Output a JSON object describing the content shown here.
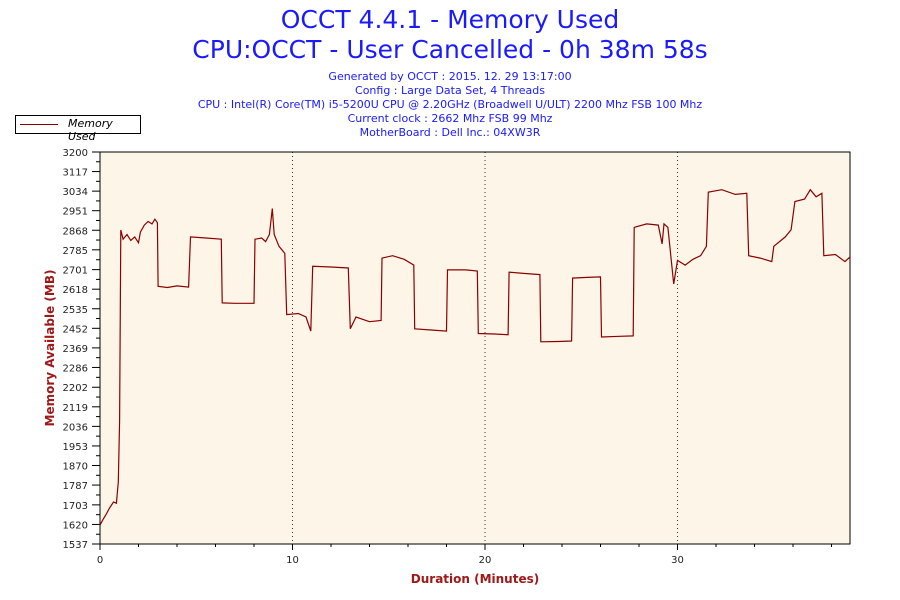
{
  "header": {
    "title": "OCCT 4.4.1 - Memory Used",
    "subtitle": "CPU:OCCT - User Cancelled - 0h 38m 58s",
    "info": [
      "Generated by OCCT : 2015. 12. 29 13:17:00",
      "Config : Large Data Set, 4 Threads",
      "CPU : Intel(R) Core(TM) i5-5200U CPU @ 2.20GHz (Broadwell U/ULT) 2200 Mhz FSB 100 Mhz",
      "Current clock : 2662 Mhz FSB 99 Mhz",
      "MotherBoard : Dell Inc.: 04XW3R"
    ]
  },
  "colors": {
    "line": "#8b0000",
    "plot_bg": "#fdf6e8",
    "title": "#1a1aff"
  },
  "chart_data": {
    "type": "line",
    "title": "OCCT 4.4.1 - Memory Used",
    "xlabel": "Duration (Minutes)",
    "ylabel": "Memory Available (MB)",
    "xlim": [
      0,
      38.96
    ],
    "ylim": [
      1537,
      3200
    ],
    "xticks": [
      0,
      10,
      20,
      30
    ],
    "yticks": [
      1537,
      1620,
      1703,
      1787,
      1870,
      1953,
      2036,
      2119,
      2202,
      2286,
      2369,
      2452,
      2535,
      2618,
      2701,
      2785,
      2868,
      2951,
      3034,
      3117,
      3200
    ],
    "grid": "vertical dotted at x ticks",
    "legend": {
      "position": "top-left",
      "entries": [
        "Memory Used"
      ]
    },
    "series": [
      {
        "name": "Memory Used",
        "points": [
          [
            0,
            1617
          ],
          [
            0.15,
            1640
          ],
          [
            0.3,
            1660
          ],
          [
            0.5,
            1690
          ],
          [
            0.7,
            1715
          ],
          [
            0.85,
            1710
          ],
          [
            0.95,
            1800
          ],
          [
            1.02,
            2060
          ],
          [
            1.08,
            2869
          ],
          [
            1.2,
            2830
          ],
          [
            1.4,
            2850
          ],
          [
            1.6,
            2825
          ],
          [
            1.8,
            2840
          ],
          [
            2.0,
            2815
          ],
          [
            2.1,
            2860
          ],
          [
            2.3,
            2890
          ],
          [
            2.5,
            2905
          ],
          [
            2.7,
            2895
          ],
          [
            2.85,
            2915
          ],
          [
            2.98,
            2900
          ],
          [
            3.02,
            2630
          ],
          [
            3.5,
            2625
          ],
          [
            4.0,
            2632
          ],
          [
            4.6,
            2627
          ],
          [
            4.7,
            2840
          ],
          [
            5.5,
            2835
          ],
          [
            6.3,
            2830
          ],
          [
            6.35,
            2560
          ],
          [
            7.0,
            2558
          ],
          [
            8.0,
            2558
          ],
          [
            8.05,
            2830
          ],
          [
            8.4,
            2835
          ],
          [
            8.6,
            2820
          ],
          [
            8.8,
            2850
          ],
          [
            8.95,
            2960
          ],
          [
            9.05,
            2850
          ],
          [
            9.3,
            2800
          ],
          [
            9.6,
            2770
          ],
          [
            9.7,
            2510
          ],
          [
            10.3,
            2515
          ],
          [
            10.7,
            2500
          ],
          [
            10.95,
            2440
          ],
          [
            11.05,
            2715
          ],
          [
            12.0,
            2712
          ],
          [
            12.9,
            2708
          ],
          [
            13.0,
            2450
          ],
          [
            13.3,
            2500
          ],
          [
            14.0,
            2480
          ],
          [
            14.6,
            2485
          ],
          [
            14.65,
            2750
          ],
          [
            15.2,
            2760
          ],
          [
            15.8,
            2745
          ],
          [
            16.3,
            2720
          ],
          [
            16.35,
            2450
          ],
          [
            17.2,
            2445
          ],
          [
            18.0,
            2440
          ],
          [
            18.05,
            2700
          ],
          [
            19.0,
            2700
          ],
          [
            19.6,
            2695
          ],
          [
            19.65,
            2430
          ],
          [
            20.5,
            2428
          ],
          [
            21.2,
            2425
          ],
          [
            21.25,
            2690
          ],
          [
            22.0,
            2685
          ],
          [
            22.85,
            2680
          ],
          [
            22.9,
            2395
          ],
          [
            23.8,
            2396
          ],
          [
            24.5,
            2398
          ],
          [
            24.55,
            2665
          ],
          [
            25.3,
            2668
          ],
          [
            26.0,
            2670
          ],
          [
            26.05,
            2415
          ],
          [
            27.0,
            2418
          ],
          [
            27.7,
            2420
          ],
          [
            27.75,
            2880
          ],
          [
            28.4,
            2895
          ],
          [
            29.0,
            2890
          ],
          [
            29.2,
            2810
          ],
          [
            29.3,
            2895
          ],
          [
            29.5,
            2880
          ],
          [
            29.8,
            2640
          ],
          [
            30.0,
            2740
          ],
          [
            30.4,
            2720
          ],
          [
            30.8,
            2745
          ],
          [
            31.2,
            2760
          ],
          [
            31.5,
            2800
          ],
          [
            31.6,
            3030
          ],
          [
            32.3,
            3040
          ],
          [
            33.0,
            3020
          ],
          [
            33.6,
            3025
          ],
          [
            33.7,
            2760
          ],
          [
            34.3,
            2750
          ],
          [
            34.9,
            2735
          ],
          [
            35.0,
            2800
          ],
          [
            35.6,
            2840
          ],
          [
            35.9,
            2870
          ],
          [
            36.1,
            2990
          ],
          [
            36.6,
            3000
          ],
          [
            36.9,
            3040
          ],
          [
            37.2,
            3010
          ],
          [
            37.5,
            3025
          ],
          [
            37.6,
            2760
          ],
          [
            38.2,
            2765
          ],
          [
            38.7,
            2735
          ],
          [
            38.96,
            2755
          ]
        ]
      }
    ]
  }
}
